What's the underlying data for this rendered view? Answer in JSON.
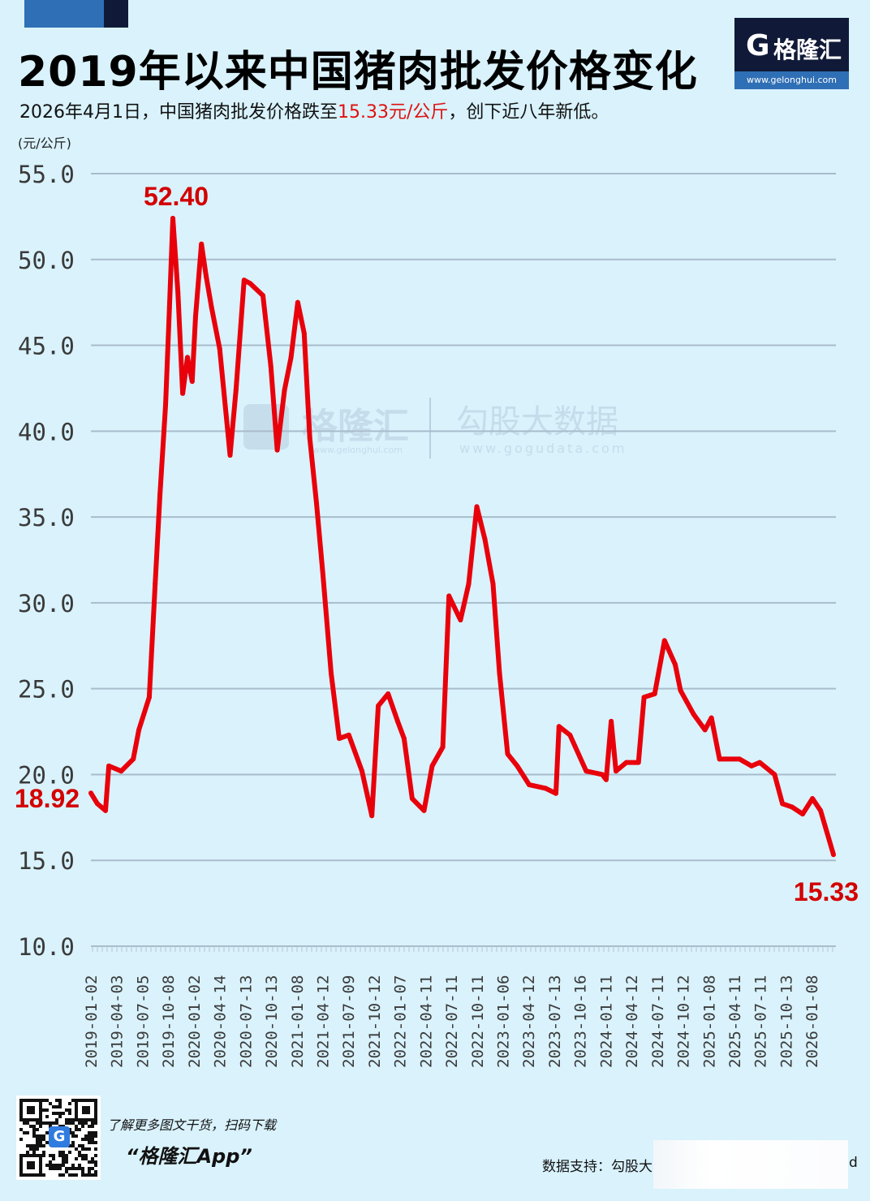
{
  "header": {
    "title": "2019年以来中国猪肉批发价格变化",
    "subtitle_before": "2026年4月1日，中国猪肉批发价格跌至",
    "subtitle_highlight": "15.33元/公斤",
    "subtitle_after": "，创下近八年新低。",
    "unit": "(元/公斤)",
    "highlight_color": "#e01010"
  },
  "logo": {
    "icon": "G",
    "name": "格隆汇",
    "url": "www.gelonghui.com"
  },
  "watermark": {
    "name1": "格隆汇",
    "url1": "www.gelonghui.com",
    "name2": "勾股大数据",
    "url2": "www.gogudata.com"
  },
  "chart_data": {
    "type": "line",
    "title": "2019年以来中国猪肉批发价格变化",
    "ylabel": "(元/公斤)",
    "ylim": [
      10,
      55
    ],
    "yticks": [
      "10.0",
      "15.0",
      "20.0",
      "25.0",
      "30.0",
      "35.0",
      "40.0",
      "45.0",
      "50.0",
      "55.0"
    ],
    "grid": true,
    "line_color": "#e8000b",
    "xticks": [
      "2019-01-02",
      "2019-04-03",
      "2019-07-05",
      "2019-10-08",
      "2020-01-02",
      "2020-04-14",
      "2020-07-13",
      "2020-10-13",
      "2021-01-08",
      "2021-04-12",
      "2021-07-09",
      "2021-10-12",
      "2022-01-07",
      "2022-04-11",
      "2022-07-11",
      "2022-10-11",
      "2023-01-06",
      "2023-04-12",
      "2023-07-13",
      "2023-10-16",
      "2024-01-11",
      "2024-04-12",
      "2024-07-11",
      "2024-10-12",
      "2025-01-08",
      "2025-04-11",
      "2025-07-11",
      "2025-10-13",
      "2026-01-08"
    ],
    "annotations": [
      {
        "label": "18.92",
        "date": "2019-01-02",
        "value": 18.92
      },
      {
        "label": "52.40",
        "date": "2019-10-21",
        "value": 52.4
      },
      {
        "label": "15.33",
        "date": "2026-04-01",
        "value": 15.33
      }
    ],
    "series": [
      {
        "x": [
          "2019-01-02",
          "2019-01-25",
          "2019-02-23",
          "2019-03-07",
          "2019-04-20",
          "2019-06-02",
          "2019-06-22",
          "2019-07-29",
          "2019-08-19",
          "2019-09-05",
          "2019-09-25",
          "2019-10-09",
          "2019-10-21",
          "2019-11-08",
          "2019-11-25",
          "2019-12-12",
          "2019-12-29",
          "2020-01-10",
          "2020-01-31",
          "2020-02-17",
          "2020-03-07",
          "2020-04-05",
          "2020-05-12",
          "2020-06-02",
          "2020-07-01",
          "2020-07-23",
          "2020-09-06",
          "2020-10-04",
          "2020-10-27",
          "2020-11-22",
          "2020-12-15",
          "2021-01-08",
          "2021-01-31",
          "2021-02-20",
          "2021-03-16",
          "2021-04-08",
          "2021-05-07",
          "2021-06-05",
          "2021-07-09",
          "2021-08-25",
          "2021-09-29",
          "2021-10-22",
          "2021-11-26",
          "2021-12-30",
          "2022-01-22",
          "2022-02-20",
          "2022-04-03",
          "2022-05-02",
          "2022-06-09",
          "2022-07-01",
          "2022-08-11",
          "2022-09-09",
          "2022-10-08",
          "2022-11-06",
          "2022-12-05",
          "2022-12-28",
          "2023-01-26",
          "2023-03-01",
          "2023-04-13",
          "2023-06-10",
          "2023-07-17",
          "2023-07-28",
          "2023-09-05",
          "2023-11-02",
          "2023-12-29",
          "2024-01-12",
          "2024-01-30",
          "2024-02-16",
          "2024-03-24",
          "2024-05-06",
          "2024-05-26",
          "2024-07-03",
          "2024-08-07",
          "2024-09-14",
          "2024-10-03",
          "2024-11-19",
          "2024-12-29",
          "2025-01-21",
          "2025-02-19",
          "2025-05-01",
          "2025-06-13",
          "2025-07-12",
          "2025-09-03",
          "2025-10-01",
          "2025-11-05",
          "2025-12-12",
          "2026-01-16",
          "2026-02-14",
          "2026-04-01"
        ],
        "values": [
          18.92,
          18.3,
          17.9,
          20.5,
          20.2,
          20.9,
          22.6,
          24.5,
          31.1,
          36.3,
          41.5,
          47.2,
          52.4,
          48.1,
          42.2,
          44.3,
          42.9,
          46.7,
          50.9,
          49.0,
          47.2,
          44.8,
          38.6,
          42.4,
          48.8,
          48.6,
          47.9,
          43.8,
          38.9,
          42.4,
          44.3,
          47.5,
          45.7,
          39.6,
          35.8,
          31.6,
          25.9,
          22.1,
          22.3,
          20.2,
          17.6,
          24.0,
          24.7,
          23.1,
          22.1,
          18.6,
          17.9,
          20.5,
          21.6,
          30.4,
          29.0,
          31.1,
          35.6,
          33.7,
          31.1,
          25.9,
          21.2,
          20.5,
          19.4,
          19.2,
          18.9,
          22.8,
          22.3,
          20.2,
          20.0,
          19.7,
          23.1,
          20.2,
          20.7,
          20.7,
          24.5,
          24.7,
          27.8,
          26.4,
          24.9,
          23.5,
          22.6,
          23.3,
          20.9,
          20.9,
          20.5,
          20.7,
          20.0,
          18.3,
          18.1,
          17.7,
          18.6,
          17.9,
          15.33
        ]
      }
    ]
  },
  "footer": {
    "qr_badge": "G",
    "promo_line1": "了解更多图文干货，扫码下载",
    "promo_line2": "“格隆汇App”",
    "source": "数据支持：勾股大",
    "source_tail": "d"
  }
}
